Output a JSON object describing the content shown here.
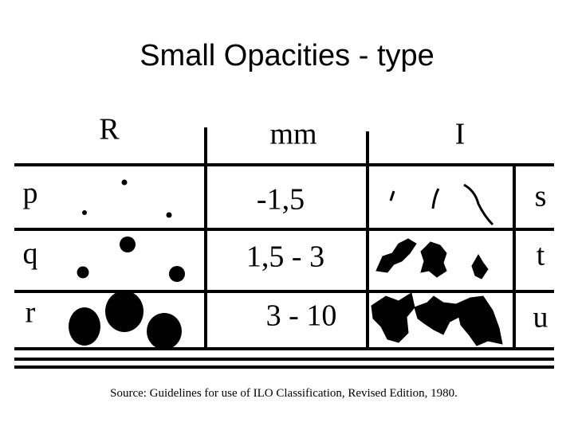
{
  "title": "Small Opacities - type",
  "table": {
    "header": [
      "R",
      "mm",
      "I"
    ],
    "rows": [
      [
        "p",
        "-1,5",
        "s"
      ],
      [
        "q",
        "1,5 - 3",
        "t"
      ],
      [
        "r",
        "3 - 10",
        "u"
      ]
    ]
  },
  "source": "Source: Guidelines for use of ILO Classification, Revised Edition, 1980."
}
